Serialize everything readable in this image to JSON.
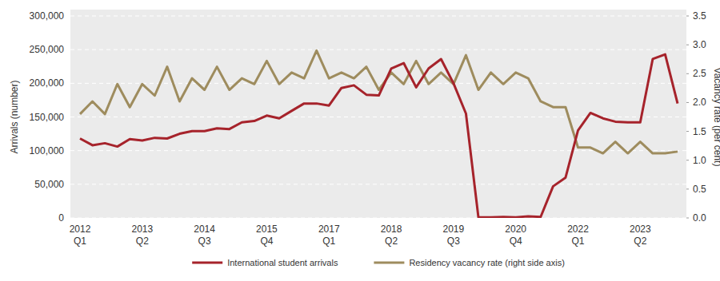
{
  "chart_data": {
    "type": "line",
    "y_label": "Arrivals (number)",
    "y2_label": "Vacancy rate (per cent)",
    "categories": [
      "2012 Q1",
      null,
      null,
      null,
      null,
      "2013 Q2",
      null,
      null,
      null,
      null,
      "2014 Q3",
      null,
      null,
      null,
      null,
      "2015 Q4",
      null,
      null,
      null,
      null,
      "2017 Q1",
      null,
      null,
      null,
      null,
      "2018 Q2",
      null,
      null,
      null,
      null,
      "2019 Q3",
      null,
      null,
      null,
      null,
      "2020 Q4",
      null,
      null,
      null,
      null,
      "2022 Q1",
      null,
      null,
      null,
      null,
      "2023 Q2",
      null,
      null,
      null
    ],
    "series": [
      {
        "name": "International student arrivals",
        "color": "#a6232b",
        "values": [
          118000,
          108000,
          111000,
          106000,
          117000,
          115000,
          119000,
          118000,
          125000,
          129000,
          129000,
          133000,
          132000,
          142000,
          144000,
          152000,
          148000,
          159000,
          170000,
          170000,
          167000,
          193000,
          197000,
          183000,
          182000,
          222000,
          230000,
          194000,
          222000,
          236000,
          200000,
          155000,
          1000,
          1000,
          1500,
          1000,
          2500,
          1500,
          47000,
          60000,
          130000,
          156000,
          148000,
          143000,
          142000,
          142000,
          236000,
          243000,
          170000
        ]
      },
      {
        "name": "Residency vacancy rate (right side axis)",
        "color": "#9e8c5e",
        "axis": "y2",
        "values": [
          1.8,
          2.02,
          1.8,
          2.32,
          1.92,
          2.32,
          2.12,
          2.62,
          2.02,
          2.42,
          2.22,
          2.62,
          2.22,
          2.42,
          2.32,
          2.72,
          2.32,
          2.52,
          2.42,
          2.9,
          2.42,
          2.52,
          2.42,
          2.62,
          2.22,
          2.52,
          2.32,
          2.72,
          2.32,
          2.52,
          2.32,
          2.82,
          2.22,
          2.52,
          2.32,
          2.52,
          2.42,
          2.02,
          1.92,
          1.92,
          1.22,
          1.22,
          1.12,
          1.32,
          1.12,
          1.32,
          1.12,
          1.12,
          1.15
        ]
      }
    ],
    "ylim": [
      0,
      300000
    ],
    "yticks": [
      0,
      {
        "value": 50000,
        "label": "50,000"
      },
      {
        "value": 100000,
        "label": "100,000"
      },
      {
        "value": 150000,
        "label": "150,000"
      },
      {
        "value": 200000,
        "label": "200,000"
      },
      {
        "value": 250000,
        "label": "250,000"
      },
      {
        "value": 300000,
        "label": "300,000"
      }
    ],
    "y2lim": [
      0,
      3.5
    ],
    "y2ticks": [
      {
        "value": 0,
        "label": "0.0"
      },
      0.5,
      {
        "value": 1,
        "label": "1.0"
      },
      1.5,
      {
        "value": 2,
        "label": "2.0"
      },
      2.5,
      {
        "value": 3,
        "label": "3.0"
      },
      3.5
    ],
    "grid": true,
    "legend": "bottom"
  }
}
